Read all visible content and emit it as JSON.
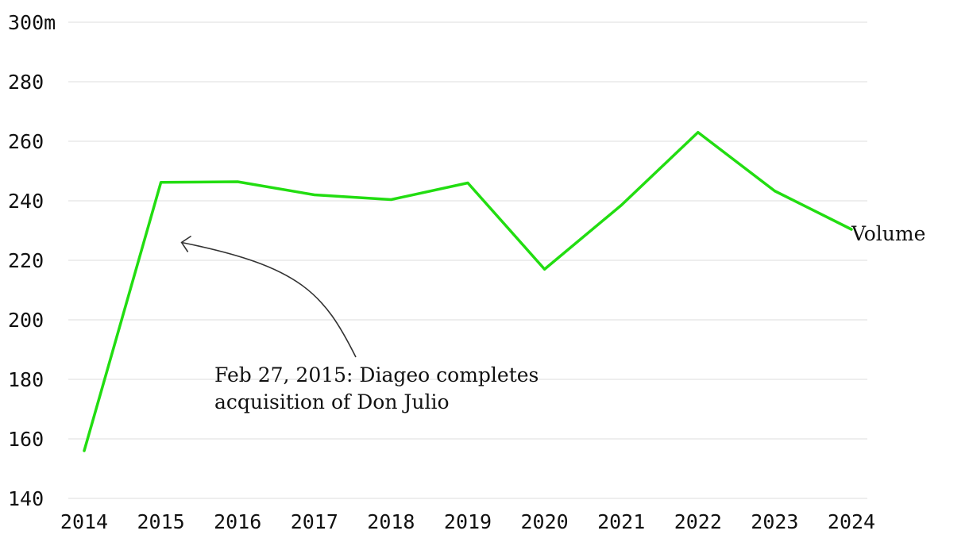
{
  "chart_data": {
    "type": "line",
    "x": [
      "2014",
      "2015",
      "2016",
      "2017",
      "2018",
      "2019",
      "2020",
      "2021",
      "2022",
      "2023",
      "2024"
    ],
    "series": [
      {
        "name": "Volume",
        "values": [
          156,
          246.2,
          246.4,
          242,
          240.4,
          246,
          217,
          238.5,
          263,
          243.3,
          230.4
        ]
      }
    ],
    "ylim": [
      140,
      300
    ],
    "yticks": [
      140,
      160,
      180,
      200,
      220,
      240,
      260,
      280,
      300
    ],
    "ytick_labels": [
      "140",
      "160",
      "180",
      "200",
      "220",
      "240",
      "260",
      "280",
      "300m"
    ],
    "grid": true,
    "line_color": "#22dd11",
    "annotation": {
      "lines": [
        "Feb 27, 2015: Diageo completes",
        "acquisition of Don Julio"
      ],
      "points_to": {
        "x": "2015",
        "y": 226
      }
    }
  }
}
